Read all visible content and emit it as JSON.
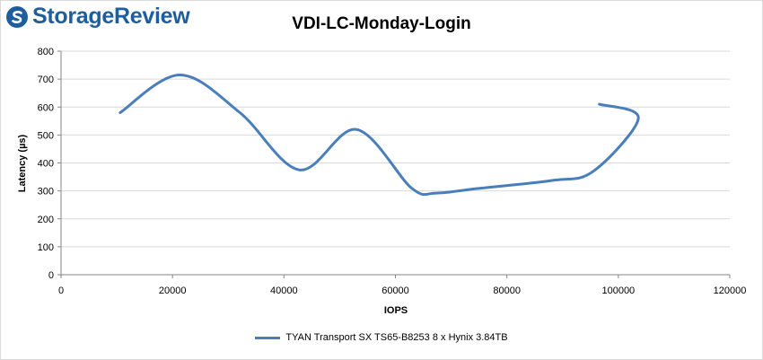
{
  "brand": {
    "name": "StorageReview",
    "accent": "#1f5e9e"
  },
  "chart_data": {
    "type": "line",
    "title": "VDI-LC-Monday-Login",
    "xlabel": "IOPS",
    "ylabel": "Latency (µs)",
    "xlim": [
      0,
      120000
    ],
    "ylim": [
      0,
      800
    ],
    "xticks": [
      0,
      20000,
      40000,
      60000,
      80000,
      100000,
      120000
    ],
    "yticks": [
      0,
      100,
      200,
      300,
      400,
      500,
      600,
      700,
      800
    ],
    "grid": "horizontal",
    "legend": "bottom",
    "series": [
      {
        "name": "TYAN Transport SX TS65-B8253 8 x Hynix 3.84TB",
        "color": "#4a7ebb",
        "x": [
          10600,
          21300,
          32100,
          42800,
          53000,
          62900,
          67300,
          74500,
          88000,
          95500,
          103600,
          96600
        ],
        "y": [
          580,
          715,
          580,
          375,
          520,
          310,
          292,
          308,
          337,
          370,
          560,
          610
        ]
      }
    ]
  }
}
